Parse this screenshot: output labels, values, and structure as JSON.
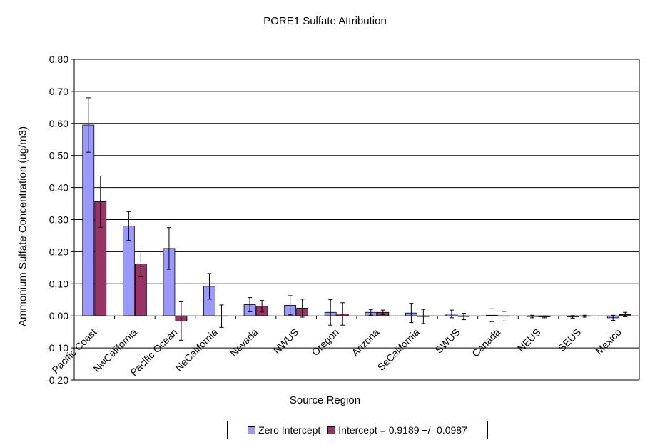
{
  "chart_data": {
    "type": "bar",
    "title": "PORE1 Sulfate Attribution",
    "xlabel": "Source Region",
    "ylabel": "Ammonium Sulfate Concentration (ug/m3)",
    "ylim": [
      -0.2,
      0.8
    ],
    "yticks": [
      -0.2,
      -0.1,
      0.0,
      0.1,
      0.2,
      0.3,
      0.4,
      0.5,
      0.6,
      0.7,
      0.8
    ],
    "ytick_labels": [
      "-0.20",
      "-0.10",
      "0.00",
      "0.10",
      "0.20",
      "0.30",
      "0.40",
      "0.50",
      "0.60",
      "0.70",
      "0.80"
    ],
    "grid": true,
    "legend_position": "bottom",
    "categories": [
      "Pacific Coast",
      "NwCalifornia",
      "Pacific Ocean",
      "NeCalifornia",
      "Nevada",
      "NWUS",
      "Oregon",
      "Arizona",
      "SeCalifornia",
      "SWUS",
      "Canada",
      "NEUS",
      "SEUS",
      "Mexico"
    ],
    "series": [
      {
        "name": "Zero Intercept",
        "color": "#9999ff",
        "values": [
          0.595,
          0.28,
          0.21,
          0.092,
          0.035,
          0.033,
          0.011,
          0.011,
          0.009,
          0.006,
          0.002,
          -0.002,
          -0.003,
          -0.006
        ],
        "errors": [
          0.085,
          0.045,
          0.065,
          0.04,
          0.022,
          0.03,
          0.04,
          0.009,
          0.03,
          0.012,
          0.02,
          0.004,
          0.004,
          0.008
        ]
      },
      {
        "name": "Intercept = 0.9189 +/- 0.0987",
        "color": "#993366",
        "values": [
          0.356,
          0.162,
          -0.016,
          -0.001,
          0.03,
          0.024,
          0.006,
          0.011,
          -0.002,
          -0.002,
          -0.001,
          -0.003,
          -0.001,
          0.004
        ],
        "errors": [
          0.08,
          0.04,
          0.06,
          0.035,
          0.018,
          0.028,
          0.035,
          0.007,
          0.022,
          0.01,
          0.015,
          0.003,
          0.003,
          0.007
        ]
      }
    ]
  }
}
